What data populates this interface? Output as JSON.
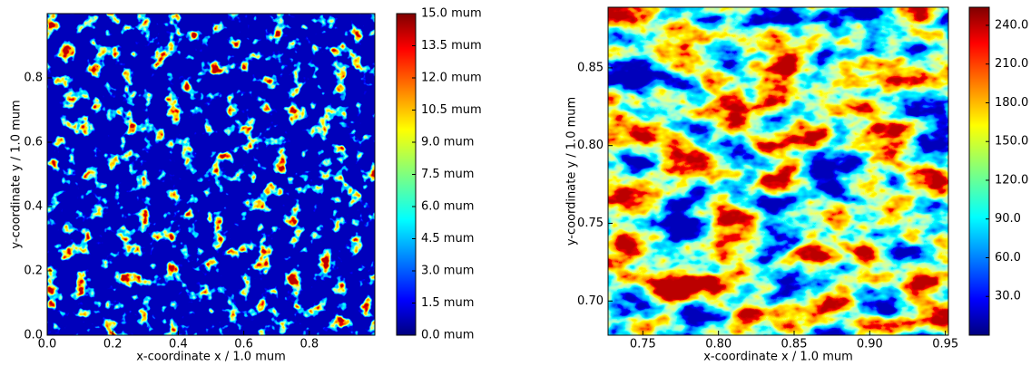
{
  "chart_data": [
    {
      "type": "heatmap",
      "colormap": "jet",
      "xlabel": "x-coordinate x / 1.0 mum",
      "ylabel": "y-coordinate y / 1.0 mum",
      "xlim": [
        0,
        1
      ],
      "ylim": [
        0,
        1
      ],
      "xticks": [
        {
          "value": 0,
          "label": "0.0"
        },
        {
          "value": 0.2,
          "label": "0.2"
        },
        {
          "value": 0.4,
          "label": "0.4"
        },
        {
          "value": 0.6,
          "label": "0.6"
        },
        {
          "value": 0.8,
          "label": "0.8"
        }
      ],
      "yticks": [
        {
          "value": 0,
          "label": "0.0"
        },
        0.2,
        0.4,
        0.6,
        0.8
      ],
      "clim": [
        0,
        15
      ],
      "cticks": [
        {
          "value": 0,
          "label": "0.0 mum"
        },
        {
          "value": 1.5,
          "label": "1.5 mum"
        },
        {
          "value": 3,
          "label": "3.0 mum"
        },
        {
          "value": 4.5,
          "label": "4.5 mum"
        },
        {
          "value": 6,
          "label": "6.0 mum"
        },
        {
          "value": 7.5,
          "label": "7.5 mum"
        },
        {
          "value": 9,
          "label": "9.0 mum"
        },
        {
          "value": 10.5,
          "label": "10.5 mum"
        },
        {
          "value": 12,
          "label": "12.0 mum"
        },
        {
          "value": 13.5,
          "label": "13.5 mum"
        },
        {
          "value": 15,
          "label": "15.0 mum"
        }
      ]
    },
    {
      "type": "heatmap",
      "colormap": "jet",
      "xlabel": "x-coordinate x / 1.0 mum",
      "ylabel": "y-coordinate y / 1.0 mum",
      "xlim": [
        0.727,
        0.952
      ],
      "ylim": [
        0.678,
        0.889
      ],
      "xticks": [
        0.75,
        {
          "value": 0.8,
          "label": "0.80"
        },
        0.85,
        {
          "value": 0.9,
          "label": "0.90"
        },
        0.95
      ],
      "yticks": [
        {
          "value": 0.7,
          "label": "0.70"
        },
        0.75,
        {
          "value": 0.8,
          "label": "0.80"
        },
        0.85
      ],
      "clim": [
        0,
        254
      ],
      "cticks": [
        {
          "value": 30,
          "label": "30.0"
        },
        {
          "value": 60,
          "label": "60.0"
        },
        {
          "value": 90,
          "label": "90.0"
        },
        {
          "value": 120,
          "label": "120.0"
        },
        {
          "value": 150,
          "label": "150.0"
        },
        {
          "value": 180,
          "label": "180.0"
        },
        {
          "value": 210,
          "label": "210.0"
        },
        {
          "value": 240,
          "label": "240.0"
        }
      ]
    }
  ]
}
